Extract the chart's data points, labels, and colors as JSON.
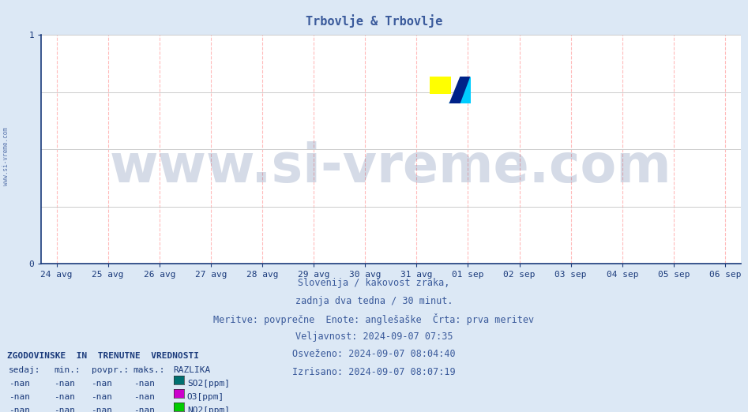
{
  "title": "Trbovlje & Trbovlje",
  "title_color": "#3a5a9b",
  "bg_color": "#dce8f5",
  "plot_bg_color": "#ffffff",
  "xlim_dates": [
    "24 avg",
    "25 avg",
    "26 avg",
    "27 avg",
    "28 avg",
    "29 avg",
    "30 avg",
    "31 avg",
    "01 sep",
    "02 sep",
    "03 sep",
    "04 sep",
    "05 sep",
    "06 sep"
  ],
  "ylim": [
    0,
    1
  ],
  "grid_v_color": "#ffbbbb",
  "grid_h_color": "#cccccc",
  "axis_color": "#1a3a7b",
  "watermark_text": "www.si-vreme.com",
  "watermark_color": "#1a3a7b",
  "watermark_alpha": 0.18,
  "watermark_fontsize": 48,
  "sidebar_text": "www.si-vreme.com",
  "sidebar_color": "#3a5a9b",
  "info_lines": [
    "Slovenija / kakovost zraka,",
    "zadnja dva tedna / 30 minut.",
    "Meritve: povprečne  Enote: anglešaške  Črta: prva meritev",
    "Veljavnost: 2024-09-07 07:35",
    "Osveženo: 2024-09-07 08:04:40",
    "Izrisano: 2024-09-07 08:07:19"
  ],
  "info_color": "#3a5a9b",
  "info_fontsize": 8.5,
  "legend_header": "ZGODOVINSKE  IN  TRENUTNE  VREDNOSTI",
  "legend_cols": [
    "sedaj:",
    "min.:",
    "povpr.:",
    "maks.:",
    "RAZLIKA"
  ],
  "legend_rows": [
    [
      "-nan",
      "-nan",
      "-nan",
      "-nan",
      "SO2[ppm]",
      "#007070"
    ],
    [
      "-nan",
      "-nan",
      "-nan",
      "-nan",
      "O3[ppm]",
      "#cc00cc"
    ],
    [
      "-nan",
      "-nan",
      "-nan",
      "-nan",
      "NO2[ppm]",
      "#00cc00"
    ]
  ],
  "legend_color": "#1a3a7b",
  "legend_fontsize": 8,
  "tick_fontsize": 8,
  "title_fontsize": 11
}
